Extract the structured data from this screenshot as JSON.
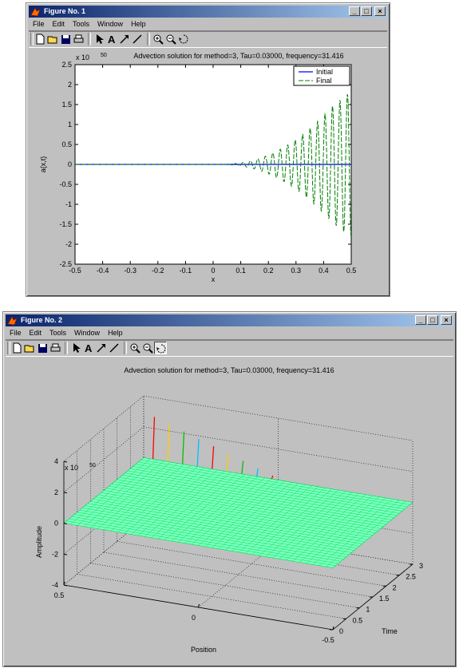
{
  "window1": {
    "title": "Figure No. 1",
    "menu": [
      "File",
      "Edit",
      "Tools",
      "Window",
      "Help"
    ],
    "tools": [
      "new-icon",
      "open-icon",
      "save-icon",
      "print-icon",
      "arrow-icon",
      "text-icon",
      "arrow-line-icon",
      "line-icon",
      "zoom-in-icon",
      "zoom-out-icon",
      "rotate-icon"
    ],
    "buttons": {
      "minimize": "_",
      "maximize": "□",
      "close": "×"
    }
  },
  "window2": {
    "title": "Figure No. 2",
    "menu": [
      "File",
      "Edit",
      "Tools",
      "Window",
      "Help"
    ],
    "tools": [
      "new-icon",
      "open-icon",
      "save-icon",
      "print-icon",
      "arrow-icon",
      "text-icon",
      "arrow-line-icon",
      "line-icon",
      "zoom-in-icon",
      "zoom-out-icon",
      "rotate-icon"
    ],
    "buttons": {
      "minimize": "_",
      "maximize": "□",
      "close": "×"
    }
  },
  "chart_data": [
    {
      "type": "line",
      "title": "Advection solution for method=3, Tau=0.03000, frequency=31.416",
      "xlabel": "x",
      "ylabel": "a(x,t)",
      "exponent_label": "x 10",
      "exponent": "50",
      "xlim": [
        -0.5,
        0.5
      ],
      "ylim": [
        -2.5,
        2.5
      ],
      "xticks": [
        "-0.5",
        "-0.4",
        "-0.3",
        "-0.2",
        "-0.1",
        "0",
        "0.1",
        "0.2",
        "0.3",
        "0.4",
        "0.5"
      ],
      "yticks": [
        "2.5",
        "2",
        "1.5",
        "1",
        "0.5",
        "0",
        "-0.5",
        "-1",
        "-1.5",
        "-2",
        "-2.5"
      ],
      "legend_position": "top-right",
      "series": [
        {
          "name": "Initial",
          "color": "#0000ff",
          "style": "solid",
          "x": [
            -0.5,
            0.5
          ],
          "y": [
            0,
            0
          ]
        },
        {
          "name": "Final",
          "color": "#008000",
          "style": "dashed",
          "growth_start": 0.02,
          "growth_end": 0.5,
          "peak": 2.05,
          "frequency": 31.416
        }
      ]
    },
    {
      "type": "surface",
      "title": "Advection solution for method=3, Tau=0.03000, frequency=31.416",
      "xlabel": "Position",
      "ylabel": "Time",
      "zlabel": "Amplitude",
      "exponent_label": "x 10",
      "exponent": "50",
      "xlim": [
        -0.5,
        0.5
      ],
      "ylim": [
        0,
        3
      ],
      "zlim": [
        -4,
        4
      ],
      "xticks": [
        "0.5",
        "0",
        "-0.5"
      ],
      "yticks": [
        "0",
        "0.5",
        "1",
        "1.5",
        "2",
        "2.5",
        "3"
      ],
      "zticks": [
        "4",
        "2",
        "0",
        "-2",
        "-4"
      ],
      "surface_color": "#7fffbf",
      "mesh_color": "#00e060",
      "spike_colors": [
        "#ff0000",
        "#ffcc00",
        "#00c000",
        "#00bfff"
      ]
    }
  ]
}
